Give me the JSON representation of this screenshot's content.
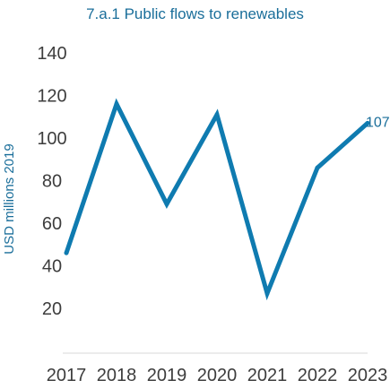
{
  "chart_data": {
    "type": "line",
    "title": "7.a.1 Public flows to renewables",
    "xlabel": "",
    "ylabel": "USD millions 2019",
    "categories": [
      "2017",
      "2018",
      "2019",
      "2020",
      "2021",
      "2022",
      "2023"
    ],
    "series": [
      {
        "values": [
          46,
          116,
          69,
          111,
          27,
          86,
          107
        ],
        "color": "#0f7bb0"
      }
    ],
    "ylim": [
      0,
      150
    ],
    "yticks": [
      20,
      40,
      60,
      80,
      100,
      120,
      140
    ],
    "data_labels": [
      {
        "index": 6,
        "text": "107"
      }
    ],
    "grid": false,
    "legend": "none"
  }
}
